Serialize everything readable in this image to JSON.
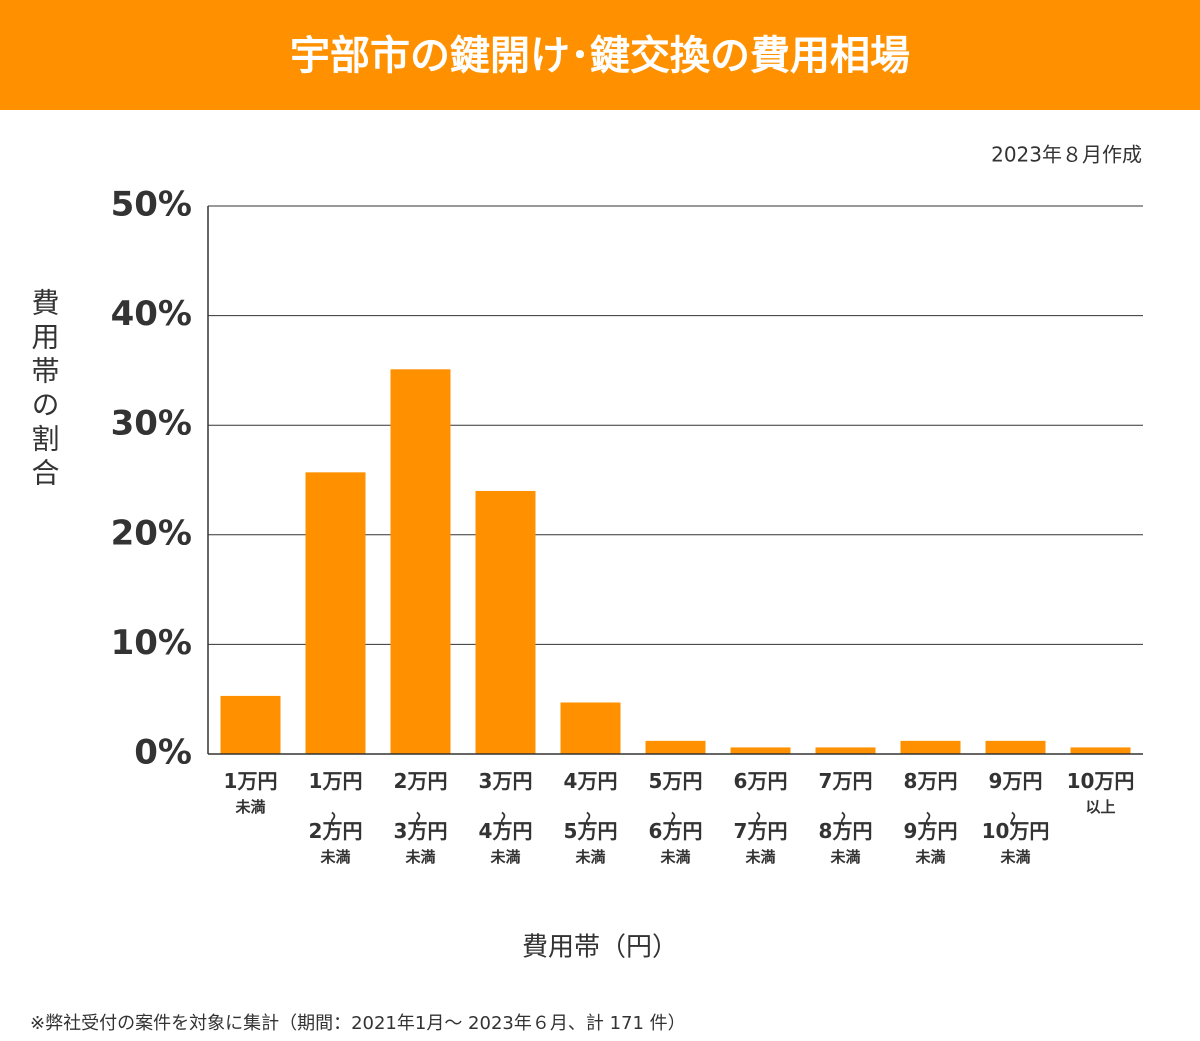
{
  "chart_data": {
    "type": "bar",
    "title": "宇部市の鍵開け･鍵交換の費用相場",
    "subtitle": "2023年８月作成",
    "y_label": "費用帯の割合",
    "x_label": "費用帯（円）",
    "note": "※弊社受付の案件を対象に集計（期間：2021年1月～ 2023年６月、計 171 件）",
    "categories": [
      "1万円\n未満",
      "1万円\n〜\n2万円\n未満",
      "2万円\n〜\n3万円\n未満",
      "3万円\n〜\n4万円\n未満",
      "4万円\n〜\n5万円\n未満",
      "5万円\n〜\n6万円\n未満",
      "6万円\n〜\n7万円\n未満",
      "7万円\n〜\n8万円\n未満",
      "8万円\n〜\n9万円\n未満",
      "9万円\n〜\n10万円\n未満",
      "10万円\n以上"
    ],
    "values": [
      5.3,
      25.7,
      35.1,
      24.0,
      4.7,
      1.2,
      0.6,
      0.6,
      1.2,
      1.2,
      0.6
    ],
    "color": "#ff9100",
    "ylim": [
      0,
      50
    ],
    "yticks": [
      {
        "value": 0,
        "label": "0%"
      },
      {
        "value": 10,
        "label": "10%"
      },
      {
        "value": 20,
        "label": "20%"
      },
      {
        "value": 30,
        "label": "30%"
      },
      {
        "value": 40,
        "label": "40%"
      },
      {
        "value": 50,
        "label": "50%"
      }
    ],
    "grid": true
  }
}
